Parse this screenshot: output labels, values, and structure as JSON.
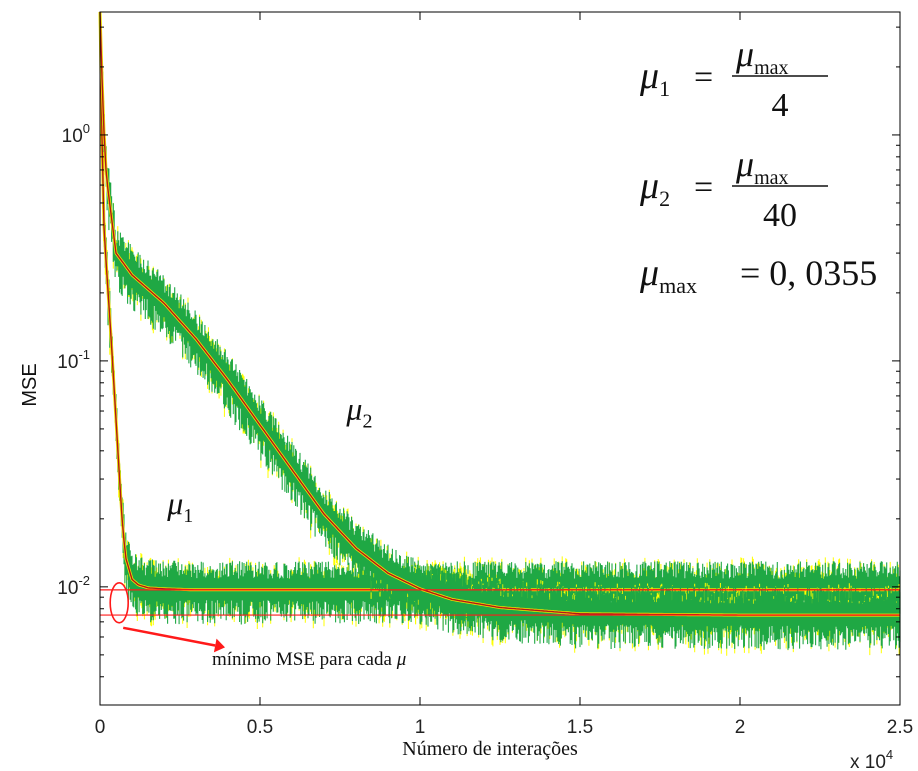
{
  "chart_data": {
    "type": "line",
    "title": "",
    "xlabel": "Número de interações",
    "ylabel": "MSE",
    "x_multiplier_label": "x 10^4",
    "xlim": [
      0,
      2.5
    ],
    "ylim": [
      0.003,
      3.5
    ],
    "yscale": "log",
    "grid": false,
    "x_ticks": [
      0,
      0.5,
      1,
      1.5,
      2,
      2.5
    ],
    "x_tick_labels": [
      "0",
      "0.5",
      "1",
      "1.5",
      "2",
      "2.5"
    ],
    "y_ticks": [
      0.01,
      0.1,
      1
    ],
    "y_tick_labels": [
      {
        "base": "10",
        "exp": "-2"
      },
      {
        "base": "10",
        "exp": "-1"
      },
      {
        "base": "10",
        "exp": "0"
      }
    ],
    "series": [
      {
        "name": "μ1",
        "color": "#1fa844",
        "noise_color": "#ffff00",
        "mean_color": "#b01818",
        "x": [
          0,
          0.01,
          0.02,
          0.03,
          0.04,
          0.05,
          0.06,
          0.07,
          0.08,
          0.1,
          0.12,
          0.15,
          0.2,
          0.3,
          0.5,
          1.0,
          1.5,
          2.0,
          2.5
        ],
        "y": [
          3.5,
          0.45,
          0.26,
          0.16,
          0.095,
          0.055,
          0.032,
          0.019,
          0.0135,
          0.0108,
          0.0102,
          0.0099,
          0.0098,
          0.0097,
          0.0097,
          0.0097,
          0.0097,
          0.0097,
          0.0097
        ]
      },
      {
        "name": "μ2",
        "color": "#1fa844",
        "noise_color": "#ffff00",
        "mean_color": "#b01818",
        "x": [
          0,
          0.01,
          0.02,
          0.05,
          0.1,
          0.2,
          0.3,
          0.4,
          0.5,
          0.6,
          0.7,
          0.8,
          0.9,
          1.0,
          1.1,
          1.25,
          1.5,
          2.0,
          2.5
        ],
        "y": [
          3.5,
          1.2,
          0.65,
          0.3,
          0.24,
          0.18,
          0.125,
          0.082,
          0.052,
          0.033,
          0.021,
          0.0148,
          0.0115,
          0.0098,
          0.0088,
          0.0081,
          0.0076,
          0.0075,
          0.0075
        ]
      }
    ],
    "min_mse_lines": [
      0.0097,
      0.0075
    ],
    "min_line_color": "#ff1a1a",
    "series_labels": [
      {
        "sym": "μ",
        "sub": "1",
        "at_x": 0.21,
        "at_y": 0.021
      },
      {
        "sym": "μ",
        "sub": "2",
        "at_x": 0.77,
        "at_y": 0.055
      }
    ],
    "annotation": {
      "text_before": "mínimo MSE para cada ",
      "symbol": "μ",
      "ellipse_at": {
        "x": 0.06,
        "y": 0.0085
      },
      "arrow_to": {
        "x": 0.36,
        "y": 0.0055
      },
      "text_at": {
        "x": 0.35,
        "y": 0.0045
      }
    },
    "equations": [
      {
        "lhs_sym": "μ",
        "lhs_sub": "1",
        "num_sym": "μ",
        "num_sub": "max",
        "den": "4"
      },
      {
        "lhs_sym": "μ",
        "lhs_sub": "2",
        "num_sym": "μ",
        "num_sub": "max",
        "den": "40"
      },
      {
        "lhs_sym": "μ",
        "lhs_sub": "max",
        "value": "= 0, 0355"
      }
    ]
  }
}
